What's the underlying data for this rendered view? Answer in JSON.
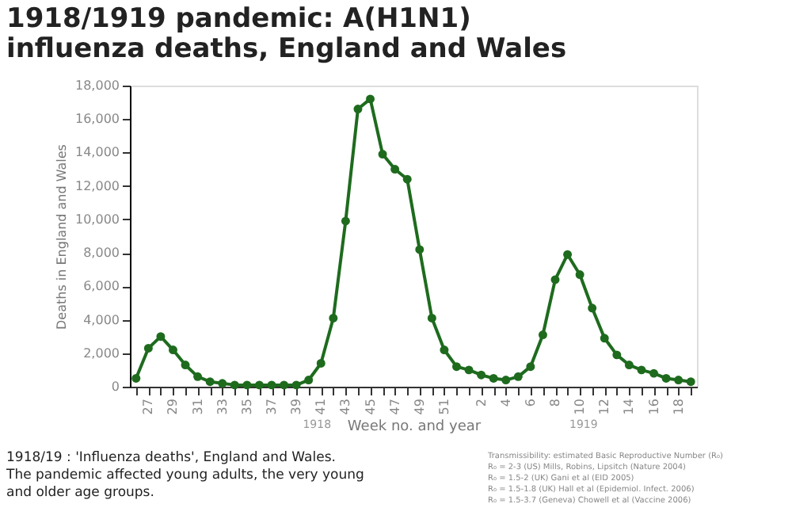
{
  "chart_data": {
    "type": "line",
    "title": "1918/1919 pandemic: A(H1N1)\ninfluenza deaths, England and Wales",
    "xlabel": "Week no. and year",
    "ylabel": "Deaths in England and Wales",
    "categories": [
      null,
      "27",
      null,
      "29",
      null,
      "31",
      null,
      "33",
      null,
      "35",
      null,
      "37",
      null,
      "39",
      null,
      "41",
      null,
      "43",
      null,
      "45",
      null,
      "47",
      null,
      "49",
      null,
      "51",
      null,
      null,
      "2",
      null,
      "4",
      null,
      "6",
      null,
      "8",
      null,
      "10",
      null,
      "12",
      null,
      "14",
      null,
      "16",
      null,
      "18",
      null
    ],
    "series": [
      {
        "color": "#1e6b1e",
        "values": [
          500,
          2300,
          3000,
          2200,
          1300,
          600,
          300,
          200,
          100,
          100,
          100,
          100,
          100,
          100,
          400,
          1400,
          4100,
          9900,
          16600,
          17200,
          13900,
          13000,
          12400,
          8200,
          4100,
          2200,
          1200,
          1000,
          700,
          500,
          400,
          600,
          1200,
          3100,
          6400,
          7900,
          6700,
          4700,
          2900,
          1900,
          1300,
          1000,
          800,
          500,
          400,
          300
        ]
      }
    ],
    "ylim": [
      0,
      18000
    ],
    "yticks": [
      {
        "value": 0,
        "label": "0"
      },
      {
        "value": 2000,
        "label": "2,000"
      },
      {
        "value": 4000,
        "label": "4,000"
      },
      {
        "value": 6000,
        "label": "6,000"
      },
      {
        "value": 8000,
        "label": "8,000"
      },
      {
        "value": 10000,
        "label": "10,000"
      },
      {
        "value": 12000,
        "label": "12,000"
      },
      {
        "value": 14000,
        "label": "14,000"
      },
      {
        "value": 16000,
        "label": "16,000"
      },
      {
        "value": 18000,
        "label": "18,000"
      }
    ],
    "grid": false,
    "marker": "circle",
    "line_style": "solid",
    "annotations": [
      "1918",
      "1919",
      "1918/19 : 'Influenza deaths', England and Wales.\nThe pandemic affected young adults, the very young\nand older age groups.",
      "Transmissibility: estimated Basic Reproductive Number (R₀)\nR₀ = 2-3 (US) Mills, Robins, Lipsitch (Nature 2004)\nR₀ = 1.5-2 (UK) Gani et al (EID 2005)\nR₀ = 1.5-1.8 (UK) Hall et al (Epidemiol. Infect. 2006)\nR₀ = 1.5-3.7 (Geneva) Chowell et al (Vaccine 2006)"
    ]
  }
}
